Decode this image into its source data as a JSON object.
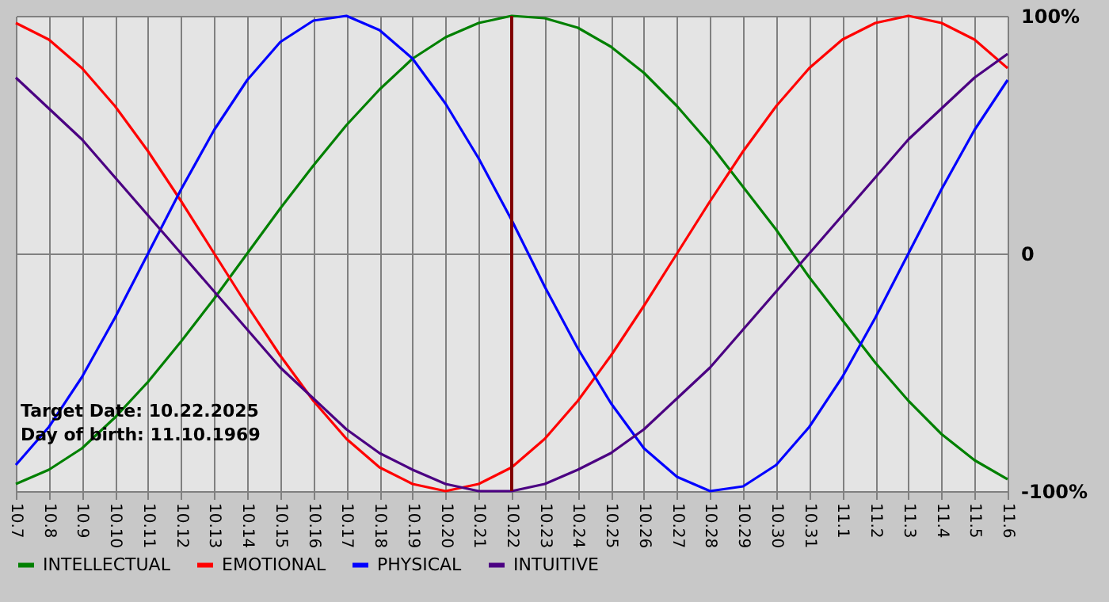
{
  "chart_data": {
    "type": "line",
    "categories": [
      "10.7",
      "10.8",
      "10.9",
      "10.10",
      "10.11",
      "10.12",
      "10.13",
      "10.14",
      "10.15",
      "10.16",
      "10.17",
      "10.18",
      "10.19",
      "10.20",
      "10.21",
      "10.22",
      "10.23",
      "10.24",
      "10.25",
      "10.26",
      "10.27",
      "10.28",
      "10.29",
      "10.30",
      "10.31",
      "11.1",
      "11.2",
      "11.3",
      "11.4",
      "11.5",
      "11.6"
    ],
    "series": [
      {
        "name": "INTELLECTUAL",
        "color": "#008000",
        "values": [
          -97,
          -91,
          -82,
          -69,
          -54,
          -37,
          -19,
          0,
          19,
          37,
          54,
          69,
          82,
          91,
          97,
          100,
          99,
          95,
          87,
          76,
          62,
          46,
          28,
          10,
          -10,
          -28,
          -46,
          -62,
          -76,
          -87,
          -95
        ]
      },
      {
        "name": "EMOTIONAL",
        "color": "#ff0000",
        "values": [
          97,
          90,
          78,
          62,
          43,
          22,
          0,
          -22,
          -43,
          -62,
          -78,
          -90,
          -97,
          -100,
          -97,
          -90,
          -78,
          -62,
          -43,
          -22,
          0,
          22,
          43,
          62,
          78,
          90,
          97,
          100,
          97,
          90,
          78
        ]
      },
      {
        "name": "PHYSICAL",
        "color": "#0000ff",
        "values": [
          -89,
          -73,
          -52,
          -27,
          0,
          27,
          52,
          73,
          89,
          98,
          100,
          94,
          82,
          63,
          40,
          14,
          -14,
          -40,
          -63,
          -82,
          -94,
          -100,
          -98,
          -89,
          -73,
          -52,
          -27,
          0,
          27,
          52,
          73
        ]
      },
      {
        "name": "INTUITIVE",
        "color": "#4b0082",
        "values": [
          74,
          61,
          48,
          32,
          16,
          0,
          -16,
          -32,
          -48,
          -61,
          -74,
          -84,
          -91,
          -97,
          -100,
          -100,
          -97,
          -91,
          -84,
          -74,
          -61,
          -48,
          -32,
          -16,
          0,
          16,
          32,
          48,
          61,
          74,
          84
        ]
      }
    ],
    "ylim": [
      -100,
      100
    ],
    "yticks": [
      {
        "value": -100,
        "label": "-100%"
      },
      {
        "value": 0,
        "label": "0"
      },
      {
        "value": 100,
        "label": "100%"
      }
    ],
    "ref_lines": [
      {
        "axis": "x",
        "value": "10.22",
        "color": "#800000"
      }
    ],
    "annotations": [
      "Target Date: 10.22.2025",
      "Day of birth: 11.10.1969"
    ],
    "grid": true,
    "legend": "bottom"
  }
}
